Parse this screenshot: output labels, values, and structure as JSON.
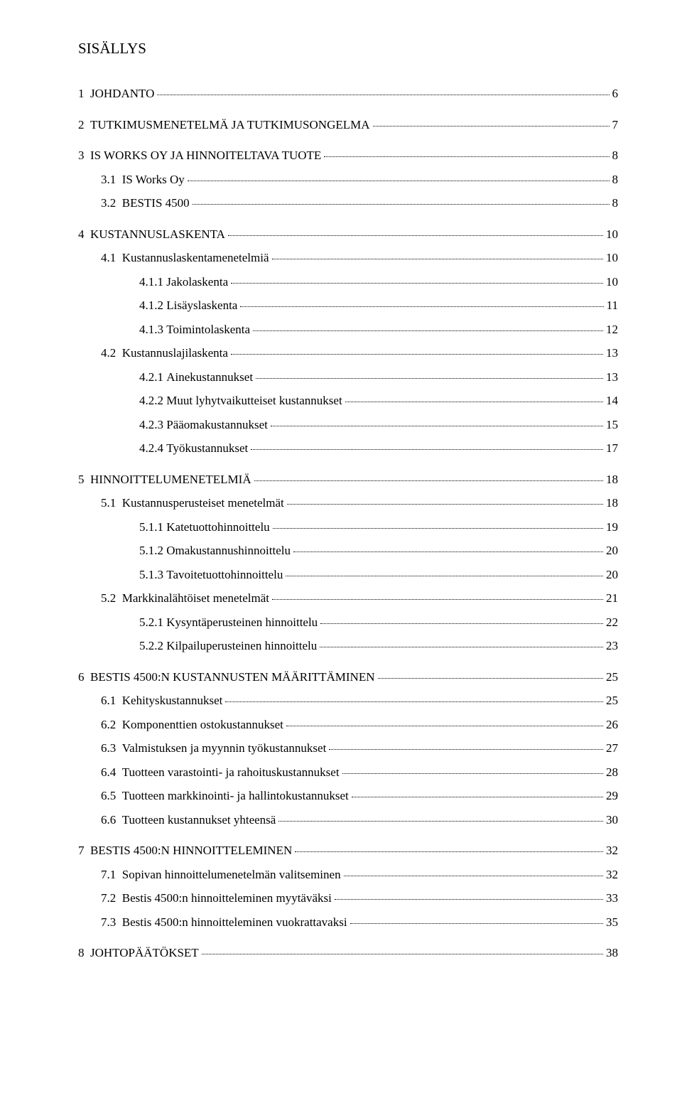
{
  "title": "SISÄLLYS",
  "entries": [
    {
      "level": 0,
      "num": "1",
      "label": "JOHDANTO",
      "page": "6"
    },
    {
      "level": 0,
      "num": "2",
      "label": "TUTKIMUSMENETELMÄ JA TUTKIMUSONGELMA",
      "page": "7"
    },
    {
      "level": 0,
      "num": "3",
      "label": "IS WORKS OY JA HINNOITELTAVA TUOTE",
      "page": "8"
    },
    {
      "level": 1,
      "num": "3.1",
      "label": "IS Works Oy",
      "page": "8"
    },
    {
      "level": 1,
      "num": "3.2",
      "label": "BESTIS 4500",
      "page": "8"
    },
    {
      "level": 0,
      "num": "4",
      "label": "KUSTANNUSLASKENTA",
      "page": "10"
    },
    {
      "level": 1,
      "num": "4.1",
      "label": "Kustannuslaskentamenetelmiä",
      "page": "10"
    },
    {
      "level": 2,
      "num": "4.1.1",
      "label": "Jakolaskenta",
      "page": "10"
    },
    {
      "level": 2,
      "num": "4.1.2",
      "label": "Lisäyslaskenta",
      "page": "11"
    },
    {
      "level": 2,
      "num": "4.1.3",
      "label": "Toimintolaskenta",
      "page": "12"
    },
    {
      "level": 1,
      "num": "4.2",
      "label": "Kustannuslajilaskenta",
      "page": "13"
    },
    {
      "level": 2,
      "num": "4.2.1",
      "label": "Ainekustannukset",
      "page": "13"
    },
    {
      "level": 2,
      "num": "4.2.2",
      "label": "Muut lyhytvaikutteiset kustannukset",
      "page": "14"
    },
    {
      "level": 2,
      "num": "4.2.3",
      "label": "Pääomakustannukset",
      "page": "15"
    },
    {
      "level": 2,
      "num": "4.2.4",
      "label": "Työkustannukset",
      "page": "17"
    },
    {
      "level": 0,
      "num": "5",
      "label": "HINNOITTELUMENETELMIÄ",
      "page": "18"
    },
    {
      "level": 1,
      "num": "5.1",
      "label": "Kustannusperusteiset menetelmät",
      "page": "18"
    },
    {
      "level": 2,
      "num": "5.1.1",
      "label": "Katetuottohinnoittelu",
      "page": "19"
    },
    {
      "level": 2,
      "num": "5.1.2",
      "label": "Omakustannushinnoittelu",
      "page": "20"
    },
    {
      "level": 2,
      "num": "5.1.3",
      "label": "Tavoitetuottohinnoittelu",
      "page": "20"
    },
    {
      "level": 1,
      "num": "5.2",
      "label": "Markkinalähtöiset menetelmät",
      "page": "21"
    },
    {
      "level": 2,
      "num": "5.2.1",
      "label": "Kysyntäperusteinen hinnoittelu",
      "page": "22"
    },
    {
      "level": 2,
      "num": "5.2.2",
      "label": "Kilpailuperusteinen hinnoittelu",
      "page": "23"
    },
    {
      "level": 0,
      "num": "6",
      "label": "BESTIS 4500:N KUSTANNUSTEN MÄÄRITTÄMINEN",
      "page": "25"
    },
    {
      "level": 1,
      "num": "6.1",
      "label": "Kehityskustannukset",
      "page": "25"
    },
    {
      "level": 1,
      "num": "6.2",
      "label": "Komponenttien ostokustannukset",
      "page": "26"
    },
    {
      "level": 1,
      "num": "6.3",
      "label": "Valmistuksen ja myynnin työkustannukset",
      "page": "27"
    },
    {
      "level": 1,
      "num": "6.4",
      "label": "Tuotteen varastointi- ja rahoituskustannukset",
      "page": "28"
    },
    {
      "level": 1,
      "num": "6.5",
      "label": "Tuotteen markkinointi- ja hallintokustannukset",
      "page": "29"
    },
    {
      "level": 1,
      "num": "6.6",
      "label": "Tuotteen kustannukset yhteensä",
      "page": "30"
    },
    {
      "level": 0,
      "num": "7",
      "label": "BESTIS 4500:N HINNOITTELEMINEN",
      "page": "32"
    },
    {
      "level": 1,
      "num": "7.1",
      "label": "Sopivan hinnoittelumenetelmän valitseminen",
      "page": "32"
    },
    {
      "level": 1,
      "num": "7.2",
      "label": "Bestis 4500:n hinnoitteleminen myytäväksi",
      "page": "33"
    },
    {
      "level": 1,
      "num": "7.3",
      "label": "Bestis 4500:n hinnoitteleminen vuokrattavaksi",
      "page": "35"
    },
    {
      "level": 0,
      "num": "8",
      "label": "JOHTOPÄÄTÖKSET",
      "page": "38"
    }
  ]
}
